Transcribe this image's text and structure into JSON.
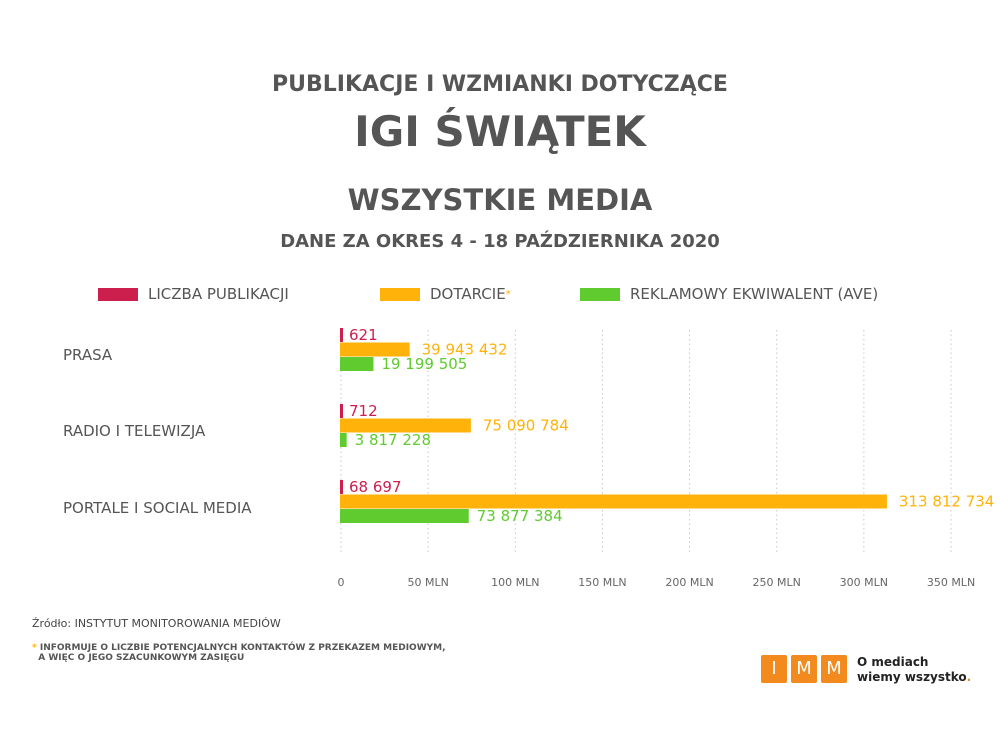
{
  "header": {
    "line1": "PUBLIKACJE I WZMIANKI DOTYCZĄCE",
    "line2": "IGI ŚWIĄTEK",
    "line3": "WSZYSTKIE MEDIA",
    "line4": "DANE ZA OKRES 4 - 18 PAŹDZIERNIKA 2020"
  },
  "chart_data": {
    "type": "bar",
    "orientation": "horizontal",
    "categories": [
      "PRASA",
      "RADIO I TELEWIZJA",
      "PORTALE I SOCIAL MEDIA"
    ],
    "series": [
      {
        "name": "LICZBA PUBLIKACJI",
        "color": "#cc1f4e",
        "values": [
          621,
          712,
          68697
        ],
        "labels": [
          "621",
          "712",
          "68 697"
        ]
      },
      {
        "name": "DOTARCIE",
        "asterisk": "*",
        "color": "#ffb30a",
        "values": [
          39943432,
          75090784,
          313812734
        ],
        "labels": [
          "39 943 432",
          "75 090 784",
          "313 812 734"
        ]
      },
      {
        "name": "REKLAMOWY EKWIWALENT (AVE)",
        "color": "#5fcb2e",
        "values": [
          19199505,
          3817228,
          73877384
        ],
        "labels": [
          "19 199 505",
          "3 817 228",
          "73 877 384"
        ]
      }
    ],
    "xlim": [
      0,
      350000000
    ],
    "xticks": [
      0,
      50000000,
      100000000,
      150000000,
      200000000,
      250000000,
      300000000,
      350000000
    ],
    "xtick_labels": [
      "0",
      "50 MLN",
      "100 MLN",
      "150 MLN",
      "200 MLN",
      "250 MLN",
      "300 MLN",
      "350 MLN"
    ],
    "grid": true,
    "legend": "top"
  },
  "footer": {
    "source": "Źródło: INSTYTUT MONITOROWANIA MEDIÓW",
    "note_star": "*",
    "note1": "INFORMUJE O LICZBIE POTENCJALNYCH KONTAKTÓW Z PRZEKAZEM MEDIOWYM,",
    "note2": "A WIĘC O JEGO SZACUNKOWYM ZASIĘGU"
  },
  "logo": {
    "letters": [
      "I",
      "M",
      "M"
    ],
    "tagline1": "O mediach",
    "tagline2": "wiemy wszystko",
    "dot": "."
  }
}
